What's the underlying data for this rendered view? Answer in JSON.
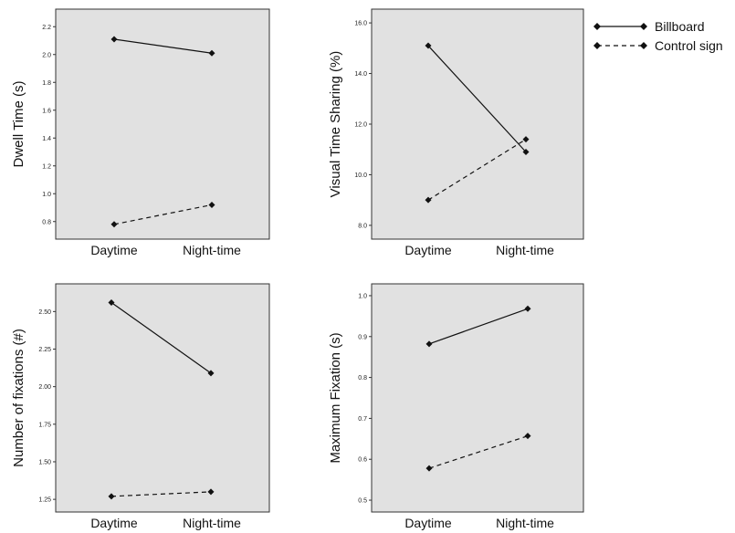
{
  "legend": {
    "items": [
      {
        "label": "Billboard",
        "style": "solid"
      },
      {
        "label": "Control sign",
        "style": "dashed"
      }
    ]
  },
  "colors": {
    "plot_background": "#e1e1e1",
    "line": "#111111",
    "frame": "#333333"
  },
  "chart_data": [
    {
      "type": "line",
      "ylabel": "Dwell Time (s)",
      "categories": [
        "Daytime",
        "Night-time"
      ],
      "ylim": [
        0.7,
        2.3
      ],
      "yticks": [
        "0.8",
        "1.0",
        "1.2",
        "1.4",
        "1.6",
        "1.8",
        "2.0",
        "2.2"
      ],
      "yticks_values": [
        0.8,
        1.0,
        1.2,
        1.4,
        1.6,
        1.8,
        2.0,
        2.2
      ],
      "series": [
        {
          "name": "Billboard",
          "style": "solid",
          "values": [
            2.11,
            2.01
          ]
        },
        {
          "name": "Control sign",
          "style": "dashed",
          "values": [
            0.78,
            0.92
          ]
        }
      ],
      "grid": false
    },
    {
      "type": "line",
      "ylabel": "Visual Time Sharing (%)",
      "categories": [
        "Daytime",
        "Night-time"
      ],
      "ylim": [
        7.6,
        16.4
      ],
      "yticks": [
        "8.0",
        "10.0",
        "12.0",
        "14.0",
        "16.0"
      ],
      "yticks_values": [
        8.0,
        10.0,
        12.0,
        14.0,
        16.0
      ],
      "series": [
        {
          "name": "Billboard",
          "style": "solid",
          "values": [
            15.1,
            10.9
          ]
        },
        {
          "name": "Control sign",
          "style": "dashed",
          "values": [
            9.0,
            11.4
          ]
        }
      ],
      "grid": false
    },
    {
      "type": "line",
      "ylabel": "Number of fixations (#)",
      "categories": [
        "Daytime",
        "Night-time"
      ],
      "ylim": [
        1.19,
        2.66
      ],
      "yticks": [
        "1.25",
        "1.50",
        "1.75",
        "2.00",
        "2.25",
        "2.50"
      ],
      "yticks_values": [
        1.25,
        1.5,
        1.75,
        2.0,
        2.25,
        2.5
      ],
      "series": [
        {
          "name": "Billboard",
          "style": "solid",
          "values": [
            2.56,
            2.09
          ]
        },
        {
          "name": "Control sign",
          "style": "dashed",
          "values": [
            1.27,
            1.3
          ]
        }
      ],
      "grid": false
    },
    {
      "type": "line",
      "ylabel": "Maximum Fixation (s)",
      "categories": [
        "Daytime",
        "Night-time"
      ],
      "ylim": [
        0.48,
        1.02
      ],
      "yticks": [
        "0.5",
        "0.6",
        "0.7",
        "0.8",
        "0.9",
        "1.0"
      ],
      "yticks_values": [
        0.5,
        0.6,
        0.7,
        0.8,
        0.9,
        1.0
      ],
      "series": [
        {
          "name": "Billboard",
          "style": "solid",
          "values": [
            0.882,
            0.968
          ]
        },
        {
          "name": "Control sign",
          "style": "dashed",
          "values": [
            0.578,
            0.657
          ]
        }
      ],
      "grid": false
    }
  ]
}
